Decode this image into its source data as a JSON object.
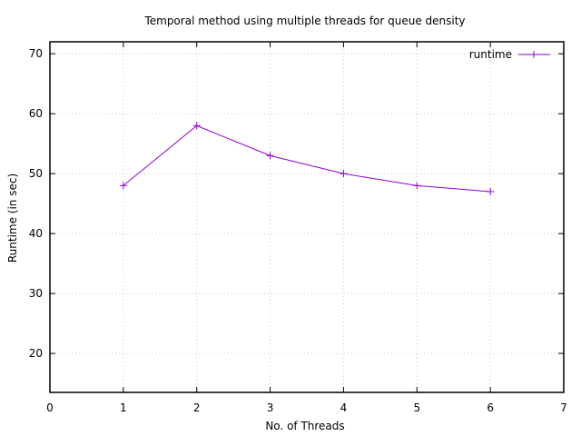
{
  "chart_data": {
    "type": "line",
    "title": "Temporal method using multiple threads for queue density",
    "xlabel": "No. of Threads",
    "ylabel": "Runtime (in sec)",
    "xlim": [
      0,
      7
    ],
    "ylim": [
      13.5,
      72
    ],
    "xticks": [
      0,
      1,
      2,
      3,
      4,
      5,
      6,
      7
    ],
    "yticks": [
      20,
      30,
      40,
      50,
      60,
      70
    ],
    "grid": true,
    "legend_position": "top-right",
    "series": [
      {
        "name": "runtime",
        "color": "#9400d3",
        "marker": "plus",
        "x": [
          1,
          2,
          3,
          4,
          5,
          6
        ],
        "y": [
          48,
          58,
          53,
          50,
          48,
          47
        ]
      }
    ]
  }
}
